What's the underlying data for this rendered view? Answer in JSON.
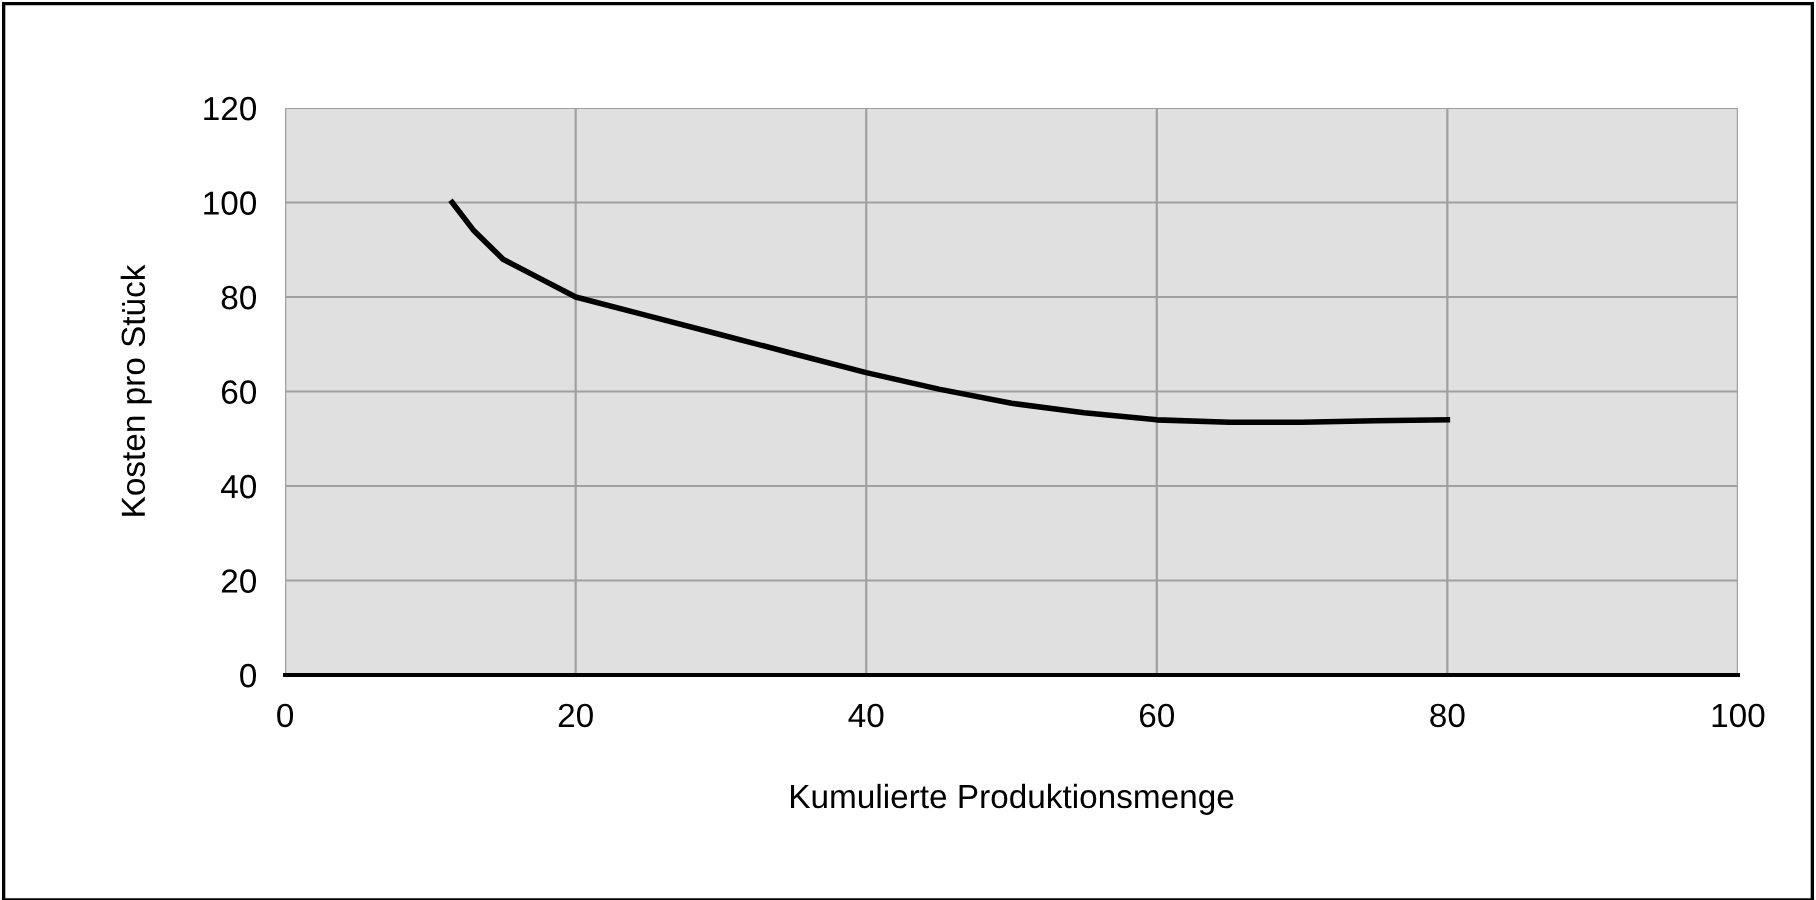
{
  "chart_data": {
    "type": "line",
    "xlabel": "Kumulierte Produktionsmenge",
    "ylabel": "Kosten pro Stück",
    "series": [
      {
        "color": "#000000",
        "x": [
          11.5,
          13,
          15,
          17.5,
          20,
          25,
          30,
          35,
          40,
          45,
          50,
          55,
          60,
          65,
          70,
          75,
          80
        ],
        "values": [
          100,
          94,
          88,
          84,
          80,
          76,
          72,
          68,
          64,
          60.5,
          57.5,
          55.5,
          54,
          53.5,
          53.5,
          53.8,
          54
        ]
      }
    ],
    "xlim": [
      0,
      100
    ],
    "ylim": [
      0,
      120
    ],
    "xticks": [
      0,
      20,
      40,
      60,
      80,
      100
    ],
    "yticks": [
      0,
      20,
      40,
      60,
      80,
      100,
      120
    ],
    "grid": true,
    "marker": "none",
    "line_style": "solid"
  }
}
